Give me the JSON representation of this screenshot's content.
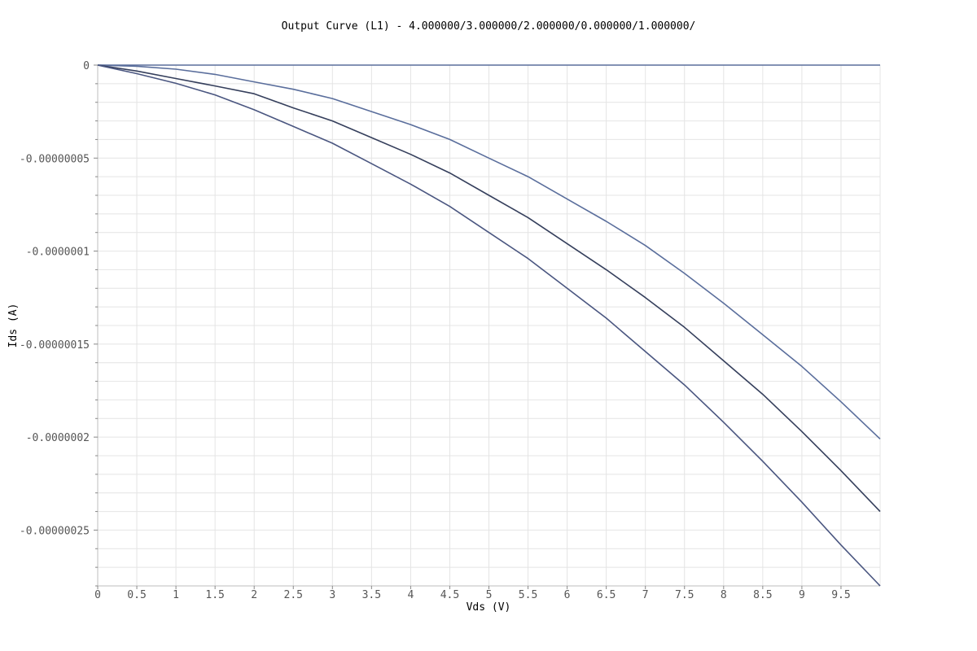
{
  "chart_data": {
    "type": "line",
    "title": "Output Curve (L1) - 4.000000/3.000000/2.000000/0.000000/1.000000/",
    "xlabel": "Vds (V)",
    "ylabel": "Ids (A)",
    "xlim": [
      0,
      10
    ],
    "ylim": [
      -2.8e-07,
      0
    ],
    "x_ticks": [
      0,
      0.5,
      1,
      1.5,
      2,
      2.5,
      3,
      3.5,
      4,
      4.5,
      5,
      5.5,
      6,
      6.5,
      7,
      7.5,
      8,
      8.5,
      9,
      9.5
    ],
    "x_tick_labels": [
      "0",
      "0.5",
      "1",
      "1.5",
      "2",
      "2.5",
      "3",
      "3.5",
      "4",
      "4.5",
      "5",
      "5.5",
      "6",
      "6.5",
      "7",
      "7.5",
      "8",
      "8.5",
      "9",
      "9.5"
    ],
    "y_ticks": [
      0,
      -5e-08,
      -1e-07,
      -1.5e-07,
      -2e-07,
      -2.5e-07
    ],
    "y_tick_labels": [
      "0",
      "-0.00000005",
      "-0.0000001",
      "-0.00000015",
      "-0.0000002",
      "-0.00000025"
    ],
    "grid": true,
    "legend": false,
    "colors": {
      "grid": "#e4e4e4",
      "axis": "#bdbdbd",
      "series_light": "#5a6e9c",
      "series_dark": "#353f5c"
    },
    "x": [
      0,
      0.5,
      1,
      1.5,
      2,
      2.5,
      3,
      3.5,
      4,
      4.5,
      5,
      5.5,
      6,
      6.5,
      7,
      7.5,
      8,
      8.5,
      9,
      9.5,
      10
    ],
    "series": [
      {
        "color": "#5a6e9c",
        "values": [
          0,
          0,
          0,
          0,
          0,
          0,
          0,
          0,
          0,
          0,
          0,
          0,
          0,
          0,
          0,
          0,
          0,
          0,
          0,
          0,
          0
        ]
      },
      {
        "color": "#5a6e9c",
        "values": [
          0,
          -6e-10,
          -2.2e-09,
          -5e-09,
          -9e-09,
          -1.3e-08,
          -1.8e-08,
          -2.5e-08,
          -3.2e-08,
          -4e-08,
          -5e-08,
          -6e-08,
          -7.2e-08,
          -8.4e-08,
          -9.7e-08,
          -1.12e-07,
          -1.28e-07,
          -1.45e-07,
          -1.62e-07,
          -1.81e-07,
          -2.01e-07
        ]
      },
      {
        "color": "#353f5c",
        "values": [
          0,
          -3.2e-09,
          -7.2e-09,
          -1.12e-08,
          -1.54e-08,
          -2.3e-08,
          -3e-08,
          -3.9e-08,
          -4.8e-08,
          -5.8e-08,
          -7e-08,
          -8.2e-08,
          -9.6e-08,
          -1.1e-07,
          -1.25e-07,
          -1.41e-07,
          -1.59e-07,
          -1.77e-07,
          -1.97e-07,
          -2.18e-07,
          -2.4e-07
        ]
      },
      {
        "color": "#4a5680",
        "values": [
          0,
          -4.6e-09,
          -9.8e-09,
          -1.6e-08,
          -2.4e-08,
          -3.3e-08,
          -4.2e-08,
          -5.3e-08,
          -6.4e-08,
          -7.6e-08,
          -9e-08,
          -1.04e-07,
          -1.2e-07,
          -1.36e-07,
          -1.54e-07,
          -1.72e-07,
          -1.92e-07,
          -2.13e-07,
          -2.35e-07,
          -2.58e-07,
          -2.8e-07
        ]
      }
    ]
  }
}
